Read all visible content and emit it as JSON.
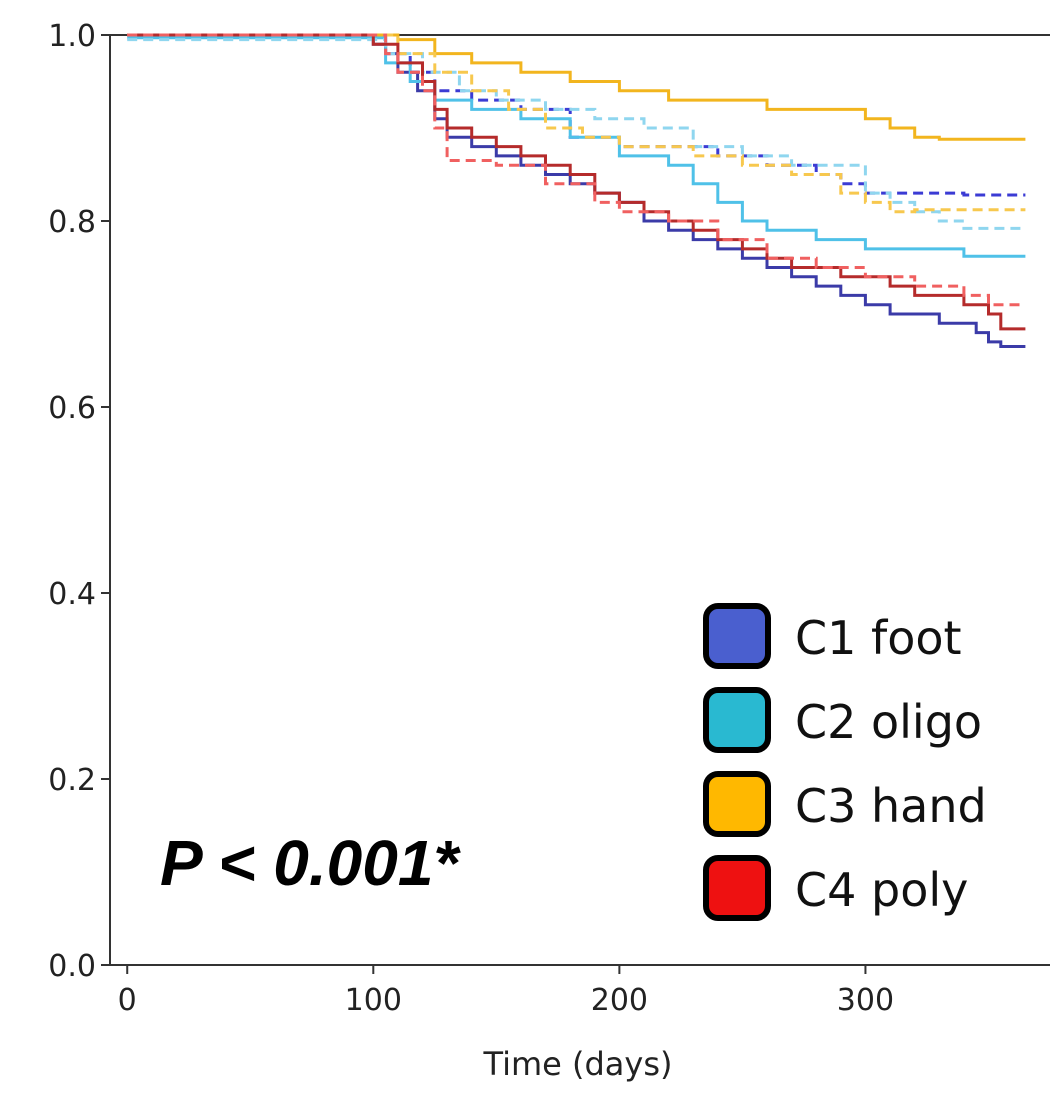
{
  "chart_data": {
    "type": "line",
    "xlabel": "Time (days)",
    "ylabel": "",
    "xlim": [
      -7,
      375
    ],
    "ylim": [
      0,
      1.0
    ],
    "x_ticks": [
      0,
      100,
      200,
      300
    ],
    "x_tick_labels": [
      "0",
      "100",
      "200",
      "300"
    ],
    "y_ticks": [
      0,
      0.2,
      0.4,
      0.6,
      0.8,
      1.0
    ],
    "y_tick_labels": [
      "0.0",
      "0.2",
      "0.4",
      "0.6",
      "0.8",
      "1.0"
    ],
    "grid": false,
    "legend_position": "bottom-right",
    "annotation": "P < 0.001*",
    "legend": [
      {
        "label": "C1 foot",
        "color": "#4a5fcf"
      },
      {
        "label": "C2 oligo",
        "color": "#29b9d1"
      },
      {
        "label": "C3 hand",
        "color": "#ffb800"
      },
      {
        "label": "C4 poly",
        "color": "#ee1111"
      }
    ],
    "series": [
      {
        "name": "C1 foot",
        "color": "#3b3ba8",
        "style": "solid",
        "x": [
          0,
          96,
          100,
          105,
          110,
          118,
          125,
          130,
          140,
          150,
          160,
          170,
          180,
          190,
          200,
          210,
          220,
          230,
          240,
          250,
          260,
          270,
          280,
          290,
          300,
          310,
          320,
          330,
          340,
          345,
          350,
          355,
          365
        ],
        "y": [
          1.0,
          1.0,
          0.99,
          0.98,
          0.96,
          0.94,
          0.91,
          0.89,
          0.88,
          0.87,
          0.86,
          0.85,
          0.84,
          0.83,
          0.82,
          0.8,
          0.79,
          0.78,
          0.77,
          0.76,
          0.75,
          0.74,
          0.73,
          0.72,
          0.71,
          0.7,
          0.7,
          0.69,
          0.69,
          0.68,
          0.67,
          0.665,
          0.665
        ]
      },
      {
        "name": "C1 foot",
        "color": "#3b3bd4",
        "style": "dashed",
        "x": [
          0,
          96,
          105,
          115,
          125,
          140,
          160,
          180,
          200,
          220,
          240,
          260,
          280,
          290,
          300,
          320,
          340,
          365
        ],
        "y": [
          1.0,
          1.0,
          0.98,
          0.96,
          0.94,
          0.93,
          0.92,
          0.89,
          0.88,
          0.88,
          0.87,
          0.86,
          0.85,
          0.84,
          0.83,
          0.83,
          0.828,
          0.828
        ]
      },
      {
        "name": "C2 oligo",
        "color": "#4fc1e8",
        "style": "solid",
        "x": [
          0,
          96,
          105,
          115,
          125,
          140,
          160,
          180,
          200,
          220,
          230,
          240,
          250,
          260,
          280,
          300,
          320,
          340,
          365
        ],
        "y": [
          0.997,
          0.997,
          0.97,
          0.95,
          0.93,
          0.92,
          0.91,
          0.89,
          0.87,
          0.86,
          0.84,
          0.82,
          0.8,
          0.79,
          0.78,
          0.77,
          0.77,
          0.762,
          0.762
        ]
      },
      {
        "name": "C2 oligo",
        "color": "#8fd6ef",
        "style": "dashed",
        "x": [
          0,
          96,
          105,
          120,
          135,
          150,
          170,
          190,
          210,
          230,
          250,
          270,
          290,
          300,
          310,
          320,
          330,
          340,
          365
        ],
        "y": [
          0.995,
          0.995,
          0.98,
          0.96,
          0.94,
          0.93,
          0.92,
          0.91,
          0.9,
          0.88,
          0.87,
          0.86,
          0.86,
          0.83,
          0.82,
          0.81,
          0.8,
          0.792,
          0.792
        ]
      },
      {
        "name": "C3 hand",
        "color": "#f2b51e",
        "style": "solid",
        "x": [
          0,
          96,
          110,
          125,
          140,
          160,
          180,
          200,
          220,
          240,
          260,
          280,
          300,
          310,
          320,
          330,
          340,
          365
        ],
        "y": [
          1.0,
          1.0,
          0.995,
          0.98,
          0.97,
          0.96,
          0.95,
          0.94,
          0.93,
          0.93,
          0.92,
          0.92,
          0.91,
          0.9,
          0.89,
          0.888,
          0.888,
          0.888
        ]
      },
      {
        "name": "C3 hand",
        "color": "#f7c84e",
        "style": "dashed",
        "x": [
          0,
          96,
          110,
          125,
          140,
          155,
          170,
          185,
          200,
          215,
          230,
          250,
          270,
          290,
          300,
          310,
          320,
          365
        ],
        "y": [
          1.0,
          1.0,
          0.98,
          0.96,
          0.94,
          0.92,
          0.9,
          0.89,
          0.88,
          0.88,
          0.87,
          0.86,
          0.85,
          0.83,
          0.82,
          0.81,
          0.812,
          0.812
        ]
      },
      {
        "name": "C4 poly",
        "color": "#b52b2b",
        "style": "solid",
        "x": [
          0,
          96,
          100,
          110,
          120,
          125,
          130,
          140,
          150,
          160,
          170,
          180,
          190,
          200,
          210,
          220,
          230,
          240,
          250,
          260,
          270,
          280,
          290,
          300,
          310,
          320,
          340,
          350,
          355,
          365
        ],
        "y": [
          1.0,
          1.0,
          0.99,
          0.97,
          0.95,
          0.92,
          0.9,
          0.89,
          0.88,
          0.87,
          0.86,
          0.85,
          0.83,
          0.82,
          0.81,
          0.8,
          0.79,
          0.78,
          0.77,
          0.76,
          0.75,
          0.75,
          0.74,
          0.74,
          0.73,
          0.72,
          0.71,
          0.7,
          0.684,
          0.684
        ]
      },
      {
        "name": "C4 poly",
        "color": "#f06060",
        "style": "dashed",
        "x": [
          0,
          96,
          105,
          110,
          120,
          125,
          130,
          150,
          170,
          190,
          200,
          220,
          240,
          260,
          280,
          300,
          320,
          340,
          350,
          365
        ],
        "y": [
          1.0,
          1.0,
          0.98,
          0.96,
          0.94,
          0.9,
          0.865,
          0.86,
          0.84,
          0.82,
          0.81,
          0.8,
          0.78,
          0.76,
          0.75,
          0.74,
          0.73,
          0.72,
          0.71,
          0.71
        ]
      }
    ]
  }
}
